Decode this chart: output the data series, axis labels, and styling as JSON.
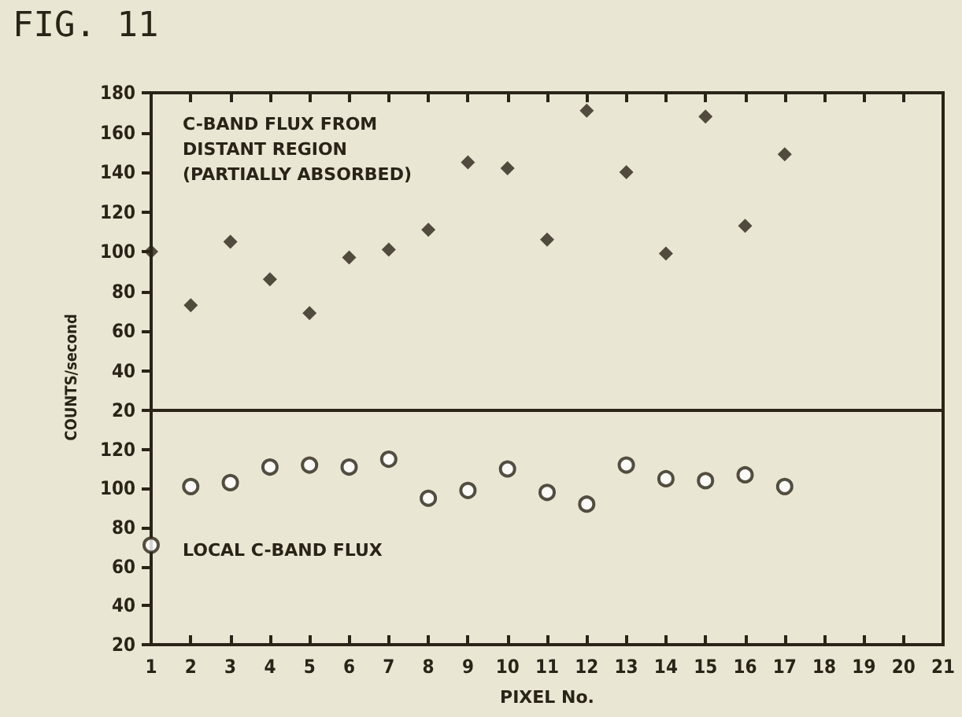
{
  "chart_data": [
    {
      "type": "scatter",
      "title": "FIG. 11",
      "ylabel": "COUNTS/second",
      "x": [
        1,
        2,
        3,
        4,
        5,
        6,
        7,
        8,
        9,
        10,
        11,
        12,
        13,
        14,
        15,
        16,
        17
      ],
      "series": [
        {
          "name": "C-BAND FLUX FROM\nDISTANT REGION\n(PARTIALLY ABSORBED)",
          "color": "#2a2418",
          "values": [
            100,
            73,
            105,
            86,
            69,
            97,
            101,
            111,
            145,
            142,
            106,
            171,
            140,
            99,
            168,
            113,
            149
          ]
        }
      ],
      "xlim": [
        1,
        21
      ],
      "xticks": [
        1,
        2,
        3,
        4,
        5,
        6,
        7,
        8,
        9,
        10,
        11,
        12,
        13,
        14,
        15,
        16,
        17,
        18,
        19,
        20,
        21
      ],
      "ylim": [
        20,
        180
      ],
      "yticks": [
        20,
        40,
        60,
        80,
        100,
        120,
        140,
        160,
        180
      ],
      "tick_labels": "y",
      "marker": "diamond",
      "grid": false,
      "legend": "top left"
    },
    {
      "type": "scatter",
      "xlabel": "PIXEL No.",
      "x": [
        1,
        2,
        3,
        4,
        5,
        6,
        7,
        8,
        9,
        10,
        11,
        12,
        13,
        14,
        15,
        16,
        17
      ],
      "series": [
        {
          "name": "LOCAL C-BAND FLUX",
          "color": "#2a2418",
          "values": [
            71,
            101,
            103,
            111,
            112,
            111,
            115,
            95,
            99,
            110,
            98,
            92,
            112,
            105,
            104,
            107,
            101
          ]
        }
      ],
      "xlim": [
        1,
        21
      ],
      "xticks": [
        1,
        2,
        3,
        4,
        5,
        6,
        7,
        8,
        9,
        10,
        11,
        12,
        13,
        14,
        15,
        16,
        17,
        18,
        19,
        20,
        21
      ],
      "ylim": [
        20,
        140
      ],
      "yticks": [
        20,
        40,
        60,
        80,
        100,
        120
      ],
      "marker": "circle",
      "grid": false,
      "legend": "bottom left"
    }
  ]
}
